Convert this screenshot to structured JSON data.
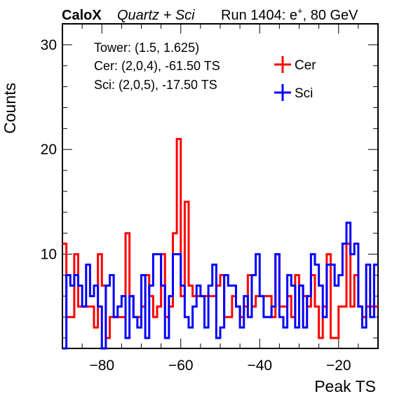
{
  "header": {
    "brand": "CaloX",
    "config": "Quartz + Sci",
    "run_prefix": "Run 1404: e",
    "run_sup": "+",
    "run_suffix": ", 80 GeV"
  },
  "info": {
    "tower": "Tower: (1.5, 1.625)",
    "cer": "Cer: (2,0,4), -61.50 TS",
    "sci": "Sci: (2,0,5), -17.50 TS"
  },
  "chart_data": {
    "type": "histogram-step",
    "xlabel": "Peak TS",
    "ylabel": "Counts",
    "xlim": [
      -90,
      -10
    ],
    "ylim": [
      1,
      32
    ],
    "x_ticks": [
      -80,
      -60,
      -40,
      -20
    ],
    "y_ticks": [
      10,
      20,
      30
    ],
    "bin_width": 1,
    "bin_start": -90,
    "legend_position": "top-right",
    "series": [
      {
        "name": "Cer",
        "color": "#ff0000",
        "values": [
          11,
          4,
          4,
          10,
          5,
          5,
          5,
          5,
          3,
          10,
          7,
          2,
          4,
          4,
          4,
          4,
          12,
          6,
          4,
          4,
          5,
          8,
          6,
          4,
          5,
          10,
          4,
          5,
          12,
          21,
          6,
          15,
          7,
          6,
          6,
          6,
          6,
          6,
          6,
          7,
          8,
          4,
          4,
          6,
          5,
          4,
          5,
          8,
          5,
          6,
          6,
          6,
          6,
          4,
          10,
          5,
          5,
          6,
          4,
          8,
          7,
          6,
          5,
          8,
          5,
          2,
          5,
          10,
          2,
          2,
          5,
          5,
          11,
          5,
          8,
          5,
          4,
          5,
          5,
          5
        ]
      },
      {
        "name": "Sci",
        "color": "#0000ff",
        "values": [
          1,
          8,
          7,
          8,
          7,
          5,
          9,
          6,
          7,
          5,
          1,
          7,
          8,
          4,
          5,
          6,
          2,
          6,
          4,
          3,
          8,
          2,
          7,
          10,
          10,
          7,
          2,
          6,
          10,
          10,
          7,
          4,
          3,
          5,
          7,
          6,
          3,
          7,
          9,
          2,
          3,
          8,
          7,
          7,
          5,
          3,
          6,
          4,
          8,
          10,
          6,
          4,
          4,
          5,
          10,
          4,
          3,
          8,
          7,
          3,
          7,
          3,
          6,
          10,
          9,
          7,
          4,
          9,
          9,
          7,
          8,
          11,
          13,
          10,
          11,
          5,
          3,
          9,
          4,
          9
        ]
      }
    ]
  }
}
